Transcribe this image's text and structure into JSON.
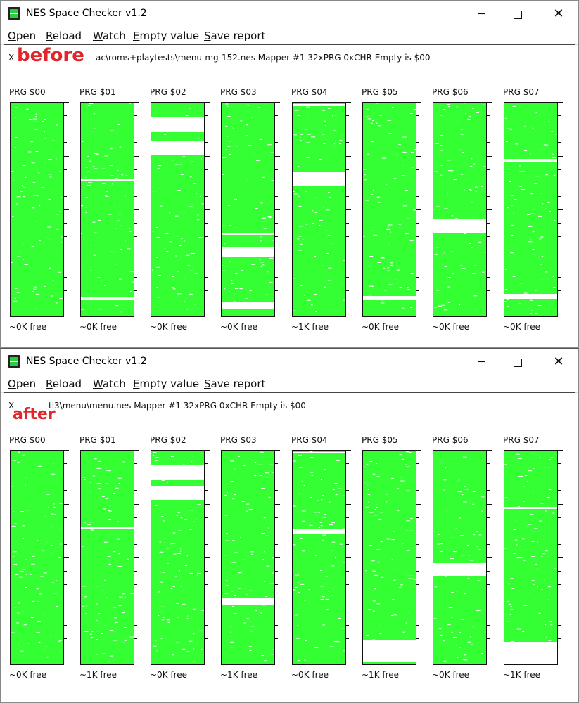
{
  "accent_color": "#33ff33",
  "windows": [
    {
      "title": "NES Space Checker v1.2",
      "app_icon": "nes-cartridge-icon",
      "controls": {
        "minimize": "─",
        "maximize": "□",
        "close": "✕"
      },
      "menu": [
        {
          "label": "Open",
          "underline": "O",
          "rest": "pen"
        },
        {
          "label": "Reload",
          "underline": "R",
          "rest": "eload"
        },
        {
          "label": "Watch",
          "underline": "W",
          "rest": "atch"
        },
        {
          "label": "Empty value",
          "underline": "E",
          "rest": "mpty value"
        },
        {
          "label": "Save report",
          "underline": "S",
          "rest": "ave report"
        }
      ],
      "overlay_label": "before",
      "info": "ac\\roms+playtests\\menu-mg-152.nes  Mapper #1  32xPRG  0xCHR  Empty is $00",
      "info_prefix": "X",
      "banks": [
        {
          "label": "PRG $00",
          "free": "~0K free"
        },
        {
          "label": "PRG $01",
          "free": "~0K free"
        },
        {
          "label": "PRG $02",
          "free": "~0K free"
        },
        {
          "label": "PRG $03",
          "free": "~0K free"
        },
        {
          "label": "PRG $04",
          "free": "~1K free"
        },
        {
          "label": "PRG $05",
          "free": "~0K free"
        },
        {
          "label": "PRG $06",
          "free": "~0K free"
        },
        {
          "label": "PRG $07",
          "free": "~0K free"
        }
      ]
    },
    {
      "title": "NES Space Checker v1.2",
      "app_icon": "nes-cartridge-icon",
      "controls": {
        "minimize": "─",
        "maximize": "□",
        "close": "✕"
      },
      "menu": [
        {
          "label": "Open",
          "underline": "O",
          "rest": "pen"
        },
        {
          "label": "Reload",
          "underline": "R",
          "rest": "eload"
        },
        {
          "label": "Watch",
          "underline": "W",
          "rest": "atch"
        },
        {
          "label": "Empty value",
          "underline": "E",
          "rest": "mpty value"
        },
        {
          "label": "Save report",
          "underline": "S",
          "rest": "ave report"
        }
      ],
      "overlay_label": "after",
      "info": "ti3\\menu\\menu.nes  Mapper #1  32xPRG  0xCHR  Empty is $00",
      "info_prefix": "X",
      "banks": [
        {
          "label": "PRG $00",
          "free": "~0K free"
        },
        {
          "label": "PRG $01",
          "free": "~1K free"
        },
        {
          "label": "PRG $02",
          "free": "~0K free"
        },
        {
          "label": "PRG $03",
          "free": "~1K free"
        },
        {
          "label": "PRG $04",
          "free": "~0K free"
        },
        {
          "label": "PRG $05",
          "free": "~1K free"
        },
        {
          "label": "PRG $06",
          "free": "~0K free"
        },
        {
          "label": "PRG $07",
          "free": "~1K free"
        }
      ]
    }
  ]
}
